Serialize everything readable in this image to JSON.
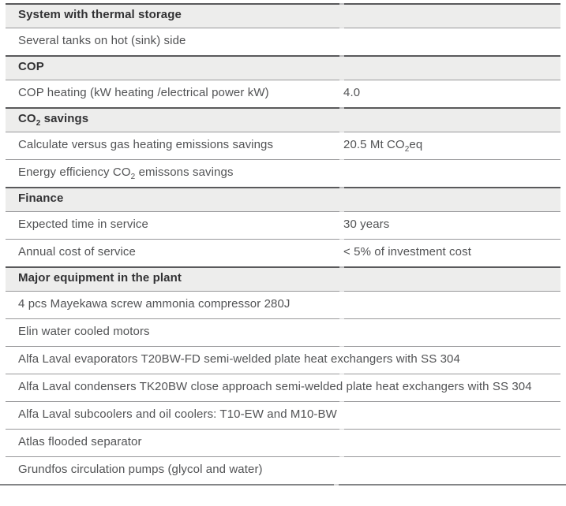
{
  "colors": {
    "header_band": "#ededec",
    "header_text": "#323234",
    "body_text": "#525355",
    "dark_border": "#59595b",
    "light_border": "#98989a",
    "bottom_border": "#848587",
    "notch": "#d9d9da",
    "notch-dark": "#bcbcbe"
  },
  "table": {
    "rows": [
      {
        "type": "header",
        "label": [
          {
            "t": "System with thermal storage"
          }
        ]
      },
      {
        "type": "row",
        "label": [
          {
            "t": "Several tanks on hot (sink) side"
          }
        ]
      },
      {
        "type": "header",
        "label": [
          {
            "t": "COP"
          }
        ]
      },
      {
        "type": "row",
        "label": [
          {
            "t": "COP heating (kW heating /electrical power kW)"
          }
        ],
        "value": [
          {
            "t": "4.0"
          }
        ]
      },
      {
        "type": "header",
        "label": [
          {
            "t": "CO"
          },
          {
            "sub": "2"
          },
          {
            "t": " savings"
          }
        ]
      },
      {
        "type": "row",
        "label": [
          {
            "t": "Calculate versus gas heating emissions savings"
          }
        ],
        "value": [
          {
            "t": "20.5 Mt CO"
          },
          {
            "sub": "2"
          },
          {
            "t": "eq"
          }
        ]
      },
      {
        "type": "row",
        "label": [
          {
            "t": "Energy efficiency CO"
          },
          {
            "sub": "2"
          },
          {
            "t": " emissons savings"
          }
        ]
      },
      {
        "type": "header",
        "label": [
          {
            "t": "Finance"
          }
        ]
      },
      {
        "type": "row",
        "label": [
          {
            "t": "Expected time in service"
          }
        ],
        "value": [
          {
            "t": "30 years"
          }
        ]
      },
      {
        "type": "row",
        "label": [
          {
            "t": "Annual cost of service"
          }
        ],
        "value": [
          {
            "t": "< 5% of investment cost"
          }
        ]
      },
      {
        "type": "header",
        "label": [
          {
            "t": "Major equipment in the plant"
          }
        ]
      },
      {
        "type": "row",
        "label": [
          {
            "t": "4 pcs Mayekawa screw ammonia compressor 280J"
          }
        ]
      },
      {
        "type": "row",
        "label": [
          {
            "t": "Elin water cooled motors"
          }
        ]
      },
      {
        "type": "row",
        "label": [
          {
            "t": "Alfa Laval evaporators T20BW-FD semi-welded plate heat exchangers with SS 304"
          }
        ]
      },
      {
        "type": "row",
        "label": [
          {
            "t": "Alfa Laval condensers TK20BW close approach semi-welded plate heat exchangers with SS 304"
          }
        ]
      },
      {
        "type": "row",
        "label": [
          {
            "t": "Alfa Laval subcoolers and oil coolers: T10-EW and M10-BW"
          }
        ]
      },
      {
        "type": "row",
        "label": [
          {
            "t": "Atlas flooded separator"
          }
        ]
      },
      {
        "type": "row",
        "label": [
          {
            "t": "Grundfos circulation pumps (glycol and water)"
          }
        ]
      }
    ]
  }
}
